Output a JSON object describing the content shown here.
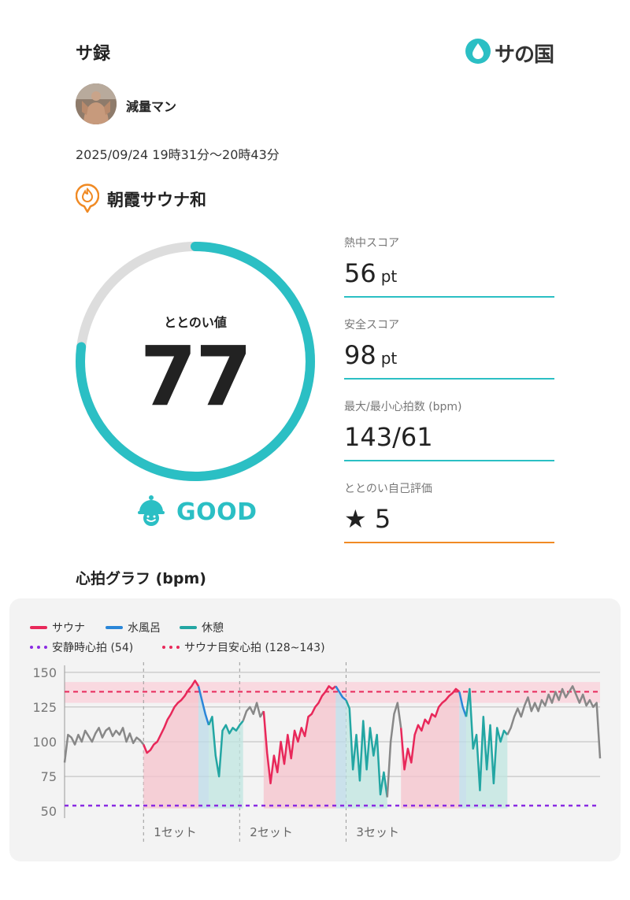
{
  "header": {
    "title": "サ録",
    "brand": "サの国",
    "brand_color": "#2bbfc4"
  },
  "user": {
    "name": "減量マン"
  },
  "session": {
    "time": "2025/09/24 19時31分〜20時43分"
  },
  "facility": {
    "name": "朝霞サウナ和",
    "icon": "sauna-location-pin-icon",
    "icon_color": "#f08a24"
  },
  "totonoi": {
    "label": "ととのい値",
    "value": "77",
    "score": 77,
    "max": 100,
    "rating": "GOOD",
    "rating_icon": "smiling-face-cap-icon",
    "ring_color": "#2bbfc4",
    "ring_track_color": "#dddddd"
  },
  "metrics": [
    {
      "label": "熱中スコア",
      "value": "56",
      "unit": "pt"
    },
    {
      "label": "安全スコア",
      "value": "98",
      "unit": "pt"
    },
    {
      "label": "最大/最小心拍数 (bpm)",
      "value": "143/61",
      "unit": ""
    },
    {
      "label": "ととのい自己評価",
      "value": "★ 5",
      "unit": ""
    }
  ],
  "chart_title": "心拍グラフ (bpm)",
  "chart_data": {
    "type": "line",
    "title": "心拍グラフ (bpm)",
    "ylim": [
      45,
      155
    ],
    "yticks": [
      50,
      75,
      100,
      125,
      150
    ],
    "grid": true,
    "legend": [
      {
        "name": "サウナ",
        "color": "#e8285a",
        "style": "solid"
      },
      {
        "name": "水風呂",
        "color": "#2a86d8",
        "style": "solid"
      },
      {
        "name": "休憩",
        "color": "#23a6a3",
        "style": "solid"
      },
      {
        "name": "安静時心拍 (54)",
        "color": "#8a2be2",
        "style": "dotted"
      },
      {
        "name": "サウナ目安心拍 (128~143)",
        "color": "#e8285a",
        "style": "dotted"
      }
    ],
    "resting_hr": 54,
    "target_range": [
      128,
      143
    ],
    "target_line": 136,
    "set_labels": [
      "1セット",
      "2セット",
      "3セット"
    ],
    "set_starts": [
      23,
      51,
      82
    ],
    "xmax": 130,
    "series": [
      {
        "name": "other",
        "color": "#888888",
        "points": [
          [
            0,
            85
          ],
          [
            1,
            105
          ],
          [
            2,
            103
          ],
          [
            3,
            98
          ],
          [
            4,
            105
          ],
          [
            5,
            100
          ],
          [
            6,
            108
          ],
          [
            7,
            104
          ],
          [
            8,
            100
          ],
          [
            9,
            106
          ],
          [
            10,
            110
          ],
          [
            11,
            103
          ],
          [
            12,
            108
          ],
          [
            13,
            110
          ],
          [
            14,
            104
          ],
          [
            15,
            108
          ],
          [
            16,
            105
          ],
          [
            17,
            110
          ],
          [
            18,
            100
          ],
          [
            19,
            106
          ],
          [
            20,
            99
          ],
          [
            21,
            103
          ],
          [
            22,
            101
          ],
          [
            23,
            98
          ]
        ]
      },
      {
        "name": "サウナ",
        "color": "#e8285a",
        "points": [
          [
            23,
            98
          ],
          [
            24,
            92
          ],
          [
            25,
            94
          ],
          [
            26,
            98
          ],
          [
            27,
            100
          ],
          [
            28,
            105
          ],
          [
            29,
            110
          ],
          [
            30,
            116
          ],
          [
            31,
            120
          ],
          [
            32,
            125
          ],
          [
            33,
            128
          ],
          [
            34,
            130
          ],
          [
            35,
            133
          ],
          [
            36,
            137
          ],
          [
            37,
            140
          ],
          [
            38,
            144
          ],
          [
            39,
            140
          ]
        ]
      },
      {
        "name": "水風呂",
        "color": "#2a86d8",
        "points": [
          [
            39,
            140
          ],
          [
            40,
            130
          ],
          [
            41,
            120
          ],
          [
            42,
            112
          ]
        ]
      },
      {
        "name": "休憩",
        "color": "#23a6a3",
        "points": [
          [
            42,
            112
          ],
          [
            43,
            118
          ],
          [
            44,
            90
          ],
          [
            45,
            75
          ],
          [
            46,
            108
          ],
          [
            47,
            112
          ],
          [
            48,
            106
          ],
          [
            49,
            110
          ],
          [
            50,
            108
          ],
          [
            51,
            112
          ],
          [
            52,
            115
          ]
        ]
      },
      {
        "name": "other",
        "color": "#888888",
        "points": [
          [
            52,
            115
          ],
          [
            53,
            122
          ],
          [
            54,
            125
          ],
          [
            55,
            120
          ],
          [
            56,
            128
          ],
          [
            57,
            118
          ],
          [
            58,
            122
          ]
        ]
      },
      {
        "name": "サウナ",
        "color": "#e8285a",
        "points": [
          [
            58,
            122
          ],
          [
            59,
            92
          ],
          [
            60,
            70
          ],
          [
            61,
            90
          ],
          [
            62,
            78
          ],
          [
            63,
            100
          ],
          [
            64,
            84
          ],
          [
            65,
            105
          ],
          [
            66,
            88
          ],
          [
            67,
            108
          ],
          [
            68,
            100
          ],
          [
            69,
            110
          ],
          [
            70,
            104
          ],
          [
            71,
            118
          ],
          [
            72,
            120
          ],
          [
            73,
            125
          ],
          [
            74,
            128
          ],
          [
            75,
            133
          ],
          [
            76,
            136
          ],
          [
            77,
            140
          ],
          [
            78,
            138
          ],
          [
            79,
            140
          ]
        ]
      },
      {
        "name": "水風呂",
        "color": "#2a86d8",
        "points": [
          [
            79,
            140
          ],
          [
            80,
            136
          ],
          [
            81,
            132
          ],
          [
            82,
            130
          ]
        ]
      },
      {
        "name": "休憩",
        "color": "#23a6a3",
        "points": [
          [
            82,
            130
          ],
          [
            83,
            124
          ],
          [
            84,
            80
          ],
          [
            85,
            105
          ],
          [
            86,
            72
          ],
          [
            87,
            115
          ],
          [
            88,
            80
          ],
          [
            89,
            110
          ],
          [
            90,
            90
          ],
          [
            91,
            105
          ],
          [
            92,
            62
          ],
          [
            93,
            78
          ],
          [
            94,
            60
          ]
        ]
      },
      {
        "name": "other",
        "color": "#888888",
        "points": [
          [
            94,
            60
          ],
          [
            95,
            100
          ],
          [
            96,
            120
          ],
          [
            97,
            128
          ],
          [
            98,
            110
          ]
        ]
      },
      {
        "name": "サウナ",
        "color": "#e8285a",
        "points": [
          [
            98,
            110
          ],
          [
            99,
            80
          ],
          [
            100,
            95
          ],
          [
            101,
            85
          ],
          [
            102,
            105
          ],
          [
            103,
            112
          ],
          [
            104,
            108
          ],
          [
            105,
            116
          ],
          [
            106,
            113
          ],
          [
            107,
            120
          ],
          [
            108,
            118
          ],
          [
            109,
            125
          ],
          [
            110,
            128
          ],
          [
            111,
            130
          ],
          [
            112,
            133
          ],
          [
            113,
            135
          ],
          [
            114,
            138
          ],
          [
            115,
            136
          ]
        ]
      },
      {
        "name": "水風呂",
        "color": "#2a86d8",
        "points": [
          [
            115,
            136
          ],
          [
            116,
            125
          ],
          [
            117,
            118
          ]
        ]
      },
      {
        "name": "休憩",
        "color": "#23a6a3",
        "points": [
          [
            117,
            118
          ],
          [
            118,
            138
          ],
          [
            119,
            95
          ],
          [
            120,
            105
          ],
          [
            121,
            65
          ],
          [
            122,
            118
          ],
          [
            123,
            80
          ],
          [
            124,
            112
          ],
          [
            125,
            70
          ],
          [
            126,
            110
          ],
          [
            127,
            100
          ],
          [
            128,
            108
          ],
          [
            129,
            105
          ]
        ]
      },
      {
        "name": "other",
        "color": "#888888",
        "points": [
          [
            129,
            105
          ],
          [
            130,
            110
          ],
          [
            131,
            118
          ],
          [
            132,
            124
          ],
          [
            133,
            118
          ],
          [
            134,
            126
          ],
          [
            135,
            132
          ],
          [
            136,
            122
          ],
          [
            137,
            128
          ],
          [
            138,
            122
          ],
          [
            139,
            130
          ],
          [
            140,
            126
          ],
          [
            141,
            134
          ],
          [
            142,
            128
          ],
          [
            143,
            136
          ],
          [
            144,
            130
          ],
          [
            145,
            138
          ],
          [
            146,
            132
          ],
          [
            147,
            136
          ],
          [
            148,
            140
          ],
          [
            149,
            134
          ],
          [
            150,
            128
          ],
          [
            151,
            134
          ],
          [
            152,
            126
          ],
          [
            153,
            130
          ],
          [
            154,
            125
          ],
          [
            155,
            128
          ],
          [
            156,
            88
          ]
        ]
      }
    ]
  }
}
